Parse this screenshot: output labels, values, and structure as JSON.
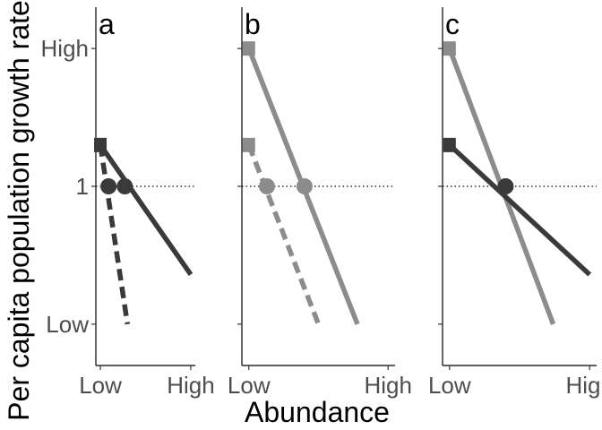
{
  "chart_data": {
    "type": "line",
    "ylabel": "Per capita population growth rate",
    "xlabel": "Abundance",
    "y_ticks": [
      "Low",
      "1",
      "High"
    ],
    "x_ticks": [
      "Low",
      "High"
    ],
    "x_domain": [
      -0.05,
      1.05
    ],
    "y_domain": [
      -0.15,
      1.15
    ],
    "reference_line_y": 0.5,
    "colors": {
      "dark": "#3a3a3a",
      "light": "#8c8c8c"
    },
    "panels": [
      {
        "letter": "a",
        "series": [
          {
            "color": "dark",
            "dashed": false,
            "start": [
              0.0,
              0.65
            ],
            "end": [
              1.0,
              0.18
            ],
            "start_marker": "square",
            "eq_x": 0.27
          },
          {
            "color": "dark",
            "dashed": true,
            "start": [
              0.0,
              0.65
            ],
            "end": [
              0.3,
              0.0
            ],
            "start_marker": "none",
            "eq_x": 0.09
          }
        ]
      },
      {
        "letter": "b",
        "series": [
          {
            "color": "light",
            "dashed": false,
            "start": [
              0.0,
              1.0
            ],
            "end": [
              0.78,
              0.0
            ],
            "start_marker": "square",
            "eq_x": 0.4
          },
          {
            "color": "light",
            "dashed": true,
            "start": [
              0.0,
              0.65
            ],
            "end": [
              0.5,
              0.0
            ],
            "start_marker": "square",
            "eq_x": 0.13
          }
        ]
      },
      {
        "letter": "c",
        "series": [
          {
            "color": "light",
            "dashed": false,
            "start": [
              0.0,
              1.0
            ],
            "end": [
              0.74,
              0.0
            ],
            "start_marker": "square",
            "eq_x": 0.4
          },
          {
            "color": "dark",
            "dashed": false,
            "start": [
              0.0,
              0.65
            ],
            "end": [
              1.0,
              0.18
            ],
            "start_marker": "square",
            "eq_x": 0.4
          }
        ]
      }
    ]
  }
}
